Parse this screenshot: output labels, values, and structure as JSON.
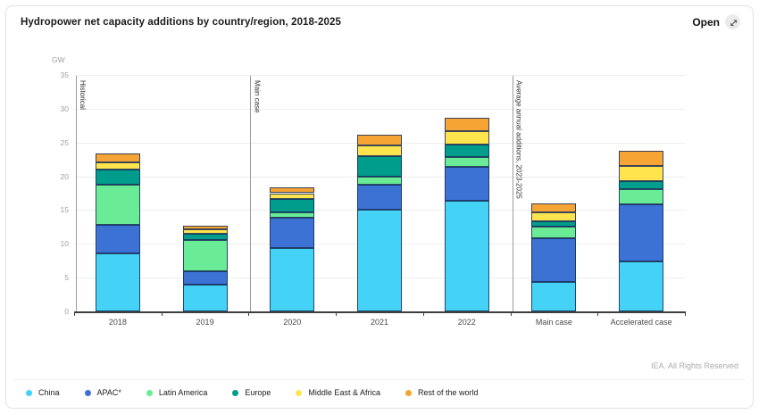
{
  "header": {
    "title": "Hydropower net capacity additions by country/region, 2018-2025",
    "open_label": "Open",
    "open_icon": "expand-diagonal"
  },
  "chart_data": {
    "type": "bar",
    "stacked": true,
    "title": "Hydropower net capacity additions by country/region, 2018-2025",
    "ylabel": "GW",
    "xlabel": "",
    "ylim": [
      0,
      35
    ],
    "ytick_step": 5,
    "grid": true,
    "legend_position": "bottom",
    "categories": [
      "2018",
      "2019",
      "2020",
      "2021",
      "2022",
      "Main case",
      "Accelerated case"
    ],
    "series": [
      {
        "name": "China",
        "color": "#44d2f6",
        "values": [
          8.6,
          3.9,
          9.4,
          15.1,
          16.4,
          4.4,
          7.4
        ]
      },
      {
        "name": "APAC*",
        "color": "#3b72d4",
        "values": [
          4.2,
          2.0,
          4.5,
          3.7,
          5.0,
          6.4,
          8.4
        ]
      },
      {
        "name": "Latin America",
        "color": "#69ec95",
        "values": [
          5.9,
          4.7,
          0.8,
          1.2,
          1.4,
          1.7,
          2.3
        ]
      },
      {
        "name": "Europe",
        "color": "#009c8c",
        "values": [
          2.3,
          0.9,
          1.9,
          3.0,
          1.9,
          0.8,
          1.2
        ]
      },
      {
        "name": "Middle East & Africa",
        "color": "#ffe44d",
        "values": [
          1.0,
          0.6,
          0.9,
          1.6,
          2.0,
          1.4,
          2.2
        ]
      },
      {
        "name": "Rest of the world",
        "color": "#f6a534",
        "values": [
          1.4,
          0.6,
          0.8,
          1.6,
          2.0,
          1.3,
          2.3
        ]
      }
    ],
    "totals": [
      23.4,
      12.7,
      18.3,
      26.2,
      28.7,
      16.0,
      23.8
    ],
    "annotations": [
      {
        "label": "Historical",
        "at_boundary": 0
      },
      {
        "label": "Main case",
        "at_boundary": 2
      },
      {
        "label": "Average annual additions, 2023-2025",
        "at_boundary": 5
      }
    ]
  },
  "footer": {
    "credit": "IEA. All Rights Reserved"
  }
}
